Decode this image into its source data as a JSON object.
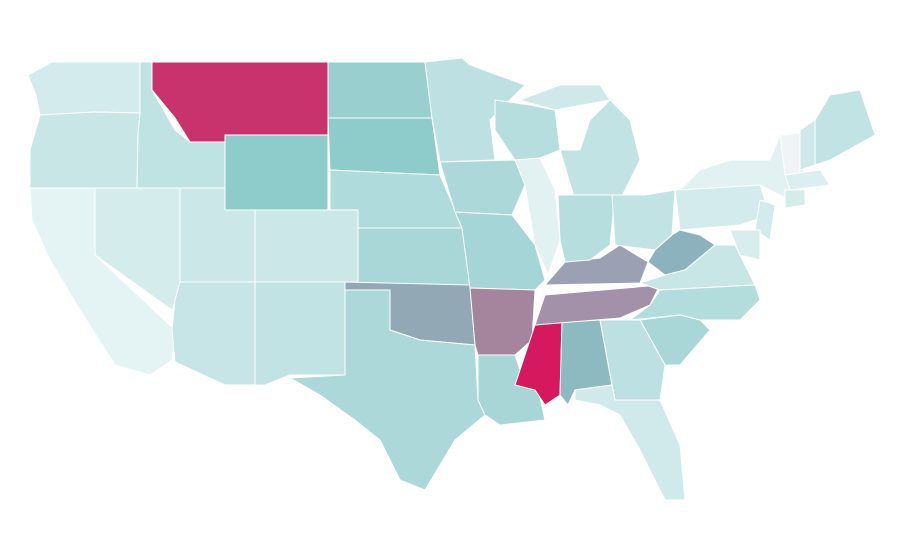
{
  "regions": [
    {
      "color": "#d3ebec"
    },
    {
      "color": "#c9e6e7"
    },
    {
      "color": "#e4f3f4"
    },
    {
      "color": "#d5ecec"
    },
    {
      "color": "#bfe2e3"
    },
    {
      "color": "#c8336e"
    },
    {
      "color": "#8ecbcb"
    },
    {
      "color": "#cbe7e8"
    },
    {
      "color": "#cbe7e8"
    },
    {
      "color": "#c7e5e6"
    },
    {
      "color": "#c2e3e4"
    },
    {
      "color": "#9acfd0"
    },
    {
      "color": "#8ecbcb"
    },
    {
      "color": "#b0dbdc"
    },
    {
      "color": "#a9d7d8"
    },
    {
      "color": "#92a8b5"
    },
    {
      "color": "#acd8d9"
    },
    {
      "color": "#bde1e2"
    },
    {
      "color": "#acd8d9"
    },
    {
      "color": "#a5d5d6"
    },
    {
      "color": "#a5849e"
    },
    {
      "color": "#a8d6d7"
    },
    {
      "color": "#d6195f"
    },
    {
      "color": "#8db9c1"
    },
    {
      "color": "#a391a9"
    },
    {
      "color": "#9ba0b3"
    },
    {
      "color": "#e2f1f2"
    },
    {
      "color": "#b6dedf"
    },
    {
      "color": "#c2e3e4"
    },
    {
      "color": "#b6dedf"
    },
    {
      "color": "#c2e3e4"
    },
    {
      "color": "#cfe9ea"
    },
    {
      "color": "#8cb3bd"
    },
    {
      "color": "#c9e6e7"
    },
    {
      "color": "#b3dcdd"
    },
    {
      "color": "#a9d7d8"
    },
    {
      "color": "#bde1e2"
    },
    {
      "color": "#d0eaeb"
    },
    {
      "color": "#d3ebec"
    },
    {
      "color": "#e2f1f2"
    },
    {
      "color": "#f1f4f5"
    },
    {
      "color": "#cfe9ea"
    },
    {
      "color": "#c2e3e4"
    },
    {
      "color": "#dbeff0"
    },
    {
      "color": "#d5ecec"
    },
    {
      "color": "#d3ebec"
    },
    {
      "color": "#d8eded"
    }
  ]
}
